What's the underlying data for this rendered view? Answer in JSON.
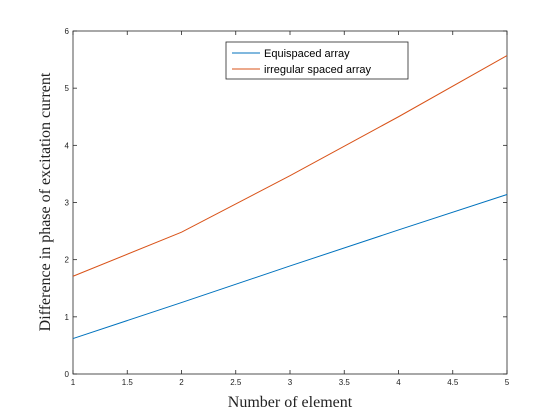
{
  "chart_data": {
    "type": "line",
    "title": "",
    "xlabel": "Number of element",
    "ylabel": "Difference in phase of excitation current",
    "xlim": [
      1,
      5
    ],
    "ylim": [
      0,
      6
    ],
    "xticks": [
      1,
      1.5,
      2,
      2.5,
      3,
      3.5,
      4,
      4.5,
      5
    ],
    "xtick_labels": [
      "1",
      "1.5",
      "2",
      "2.5",
      "3",
      "3.5",
      "4",
      "4.5",
      "5"
    ],
    "yticks": [
      0,
      1,
      2,
      3,
      4,
      5,
      6
    ],
    "ytick_labels": [
      "0",
      "1",
      "2",
      "3",
      "4",
      "5",
      "6"
    ],
    "grid": false,
    "legend_position": "top-center",
    "x": [
      1,
      2,
      3,
      4,
      5
    ],
    "series": [
      {
        "name": "Equispaced array",
        "color": "#0072bd",
        "values": [
          0.62,
          1.25,
          1.89,
          2.52,
          3.14
        ]
      },
      {
        "name": "irregular spaced array",
        "color": "#d95319",
        "values": [
          1.71,
          2.48,
          3.47,
          4.5,
          5.57
        ]
      }
    ]
  }
}
